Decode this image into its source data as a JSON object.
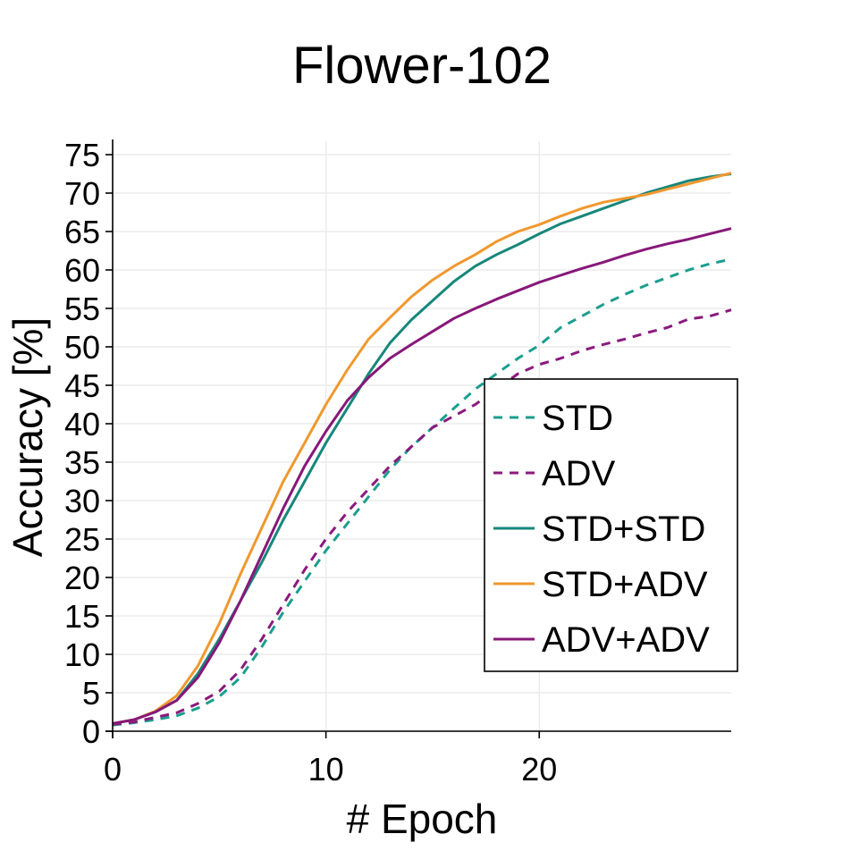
{
  "chart_data": {
    "type": "line",
    "title": "Flower-102",
    "xlabel": "# Epoch",
    "ylabel": "Accuracy [%]",
    "xlim": [
      0,
      29
    ],
    "ylim": [
      0,
      75
    ],
    "x_ticks": [
      0,
      10,
      20
    ],
    "y_ticks": [
      0,
      5,
      10,
      15,
      20,
      25,
      30,
      35,
      40,
      45,
      50,
      55,
      60,
      65,
      70,
      75
    ],
    "grid": true,
    "legend_position": "center-right",
    "x": [
      0,
      1,
      2,
      3,
      4,
      5,
      6,
      7,
      8,
      9,
      10,
      11,
      12,
      13,
      14,
      15,
      16,
      17,
      18,
      19,
      20,
      21,
      22,
      23,
      24,
      25,
      26,
      27,
      28,
      29
    ],
    "series": [
      {
        "name": "STD",
        "color": "#1b9e8f",
        "dashed": true,
        "values": [
          0.8,
          1.1,
          1.5,
          2.0,
          3.0,
          4.5,
          7.0,
          11.0,
          15.5,
          19.5,
          23.5,
          27.0,
          30.5,
          34.0,
          37.0,
          39.5,
          42.0,
          44.5,
          46.5,
          48.5,
          50.2,
          52.5,
          54.0,
          55.5,
          56.8,
          58.0,
          59.0,
          60.0,
          60.8,
          61.4
        ]
      },
      {
        "name": "ADV",
        "color": "#8b1a7e",
        "dashed": true,
        "values": [
          0.9,
          1.2,
          1.8,
          2.4,
          3.6,
          5.2,
          8.0,
          12.0,
          16.5,
          21.0,
          25.0,
          28.5,
          31.5,
          34.5,
          37.0,
          39.5,
          41.0,
          42.5,
          44.5,
          46.5,
          47.7,
          48.5,
          49.5,
          50.3,
          51.0,
          51.8,
          52.5,
          53.6,
          54.0,
          54.8
        ]
      },
      {
        "name": "STD+STD",
        "color": "#17877b",
        "dashed": false,
        "values": [
          1.0,
          1.5,
          2.5,
          4.0,
          7.5,
          12.0,
          17.0,
          22.0,
          27.5,
          32.5,
          37.5,
          42.0,
          46.5,
          50.5,
          53.5,
          56.0,
          58.5,
          60.5,
          62.0,
          63.3,
          64.7,
          66.0,
          67.0,
          68.0,
          69.0,
          70.0,
          70.8,
          71.6,
          72.1,
          72.5
        ]
      },
      {
        "name": "STD+ADV",
        "color": "#f0982e",
        "dashed": false,
        "values": [
          1.0,
          1.5,
          2.6,
          4.6,
          8.5,
          14.0,
          20.5,
          26.5,
          32.5,
          37.5,
          42.5,
          47.0,
          51.0,
          53.8,
          56.5,
          58.7,
          60.5,
          62.0,
          63.7,
          65.0,
          65.9,
          67.0,
          68.0,
          68.8,
          69.3,
          69.8,
          70.5,
          71.2,
          71.9,
          72.6
        ]
      },
      {
        "name": "ADV+ADV",
        "color": "#871879",
        "dashed": false,
        "values": [
          1.0,
          1.5,
          2.5,
          4.0,
          7.0,
          11.5,
          17.0,
          23.0,
          29.0,
          34.5,
          39.0,
          43.0,
          46.0,
          48.5,
          50.3,
          52.0,
          53.7,
          55.0,
          56.2,
          57.3,
          58.4,
          59.3,
          60.2,
          61.0,
          61.9,
          62.7,
          63.4,
          64.0,
          64.7,
          65.4
        ]
      }
    ]
  }
}
